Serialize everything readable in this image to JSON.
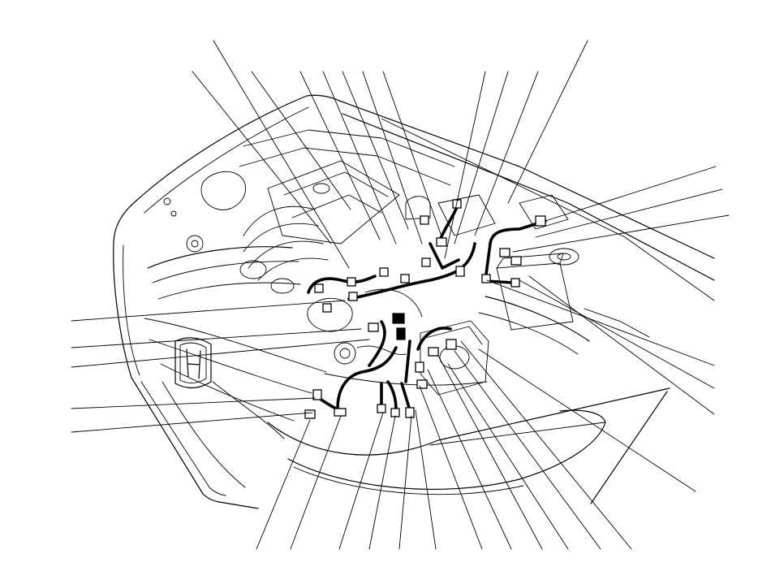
{
  "colors": {
    "background": "#ffffff",
    "line": "#000000",
    "connector_fill": "#ffffff",
    "harness": "#000000"
  }
}
